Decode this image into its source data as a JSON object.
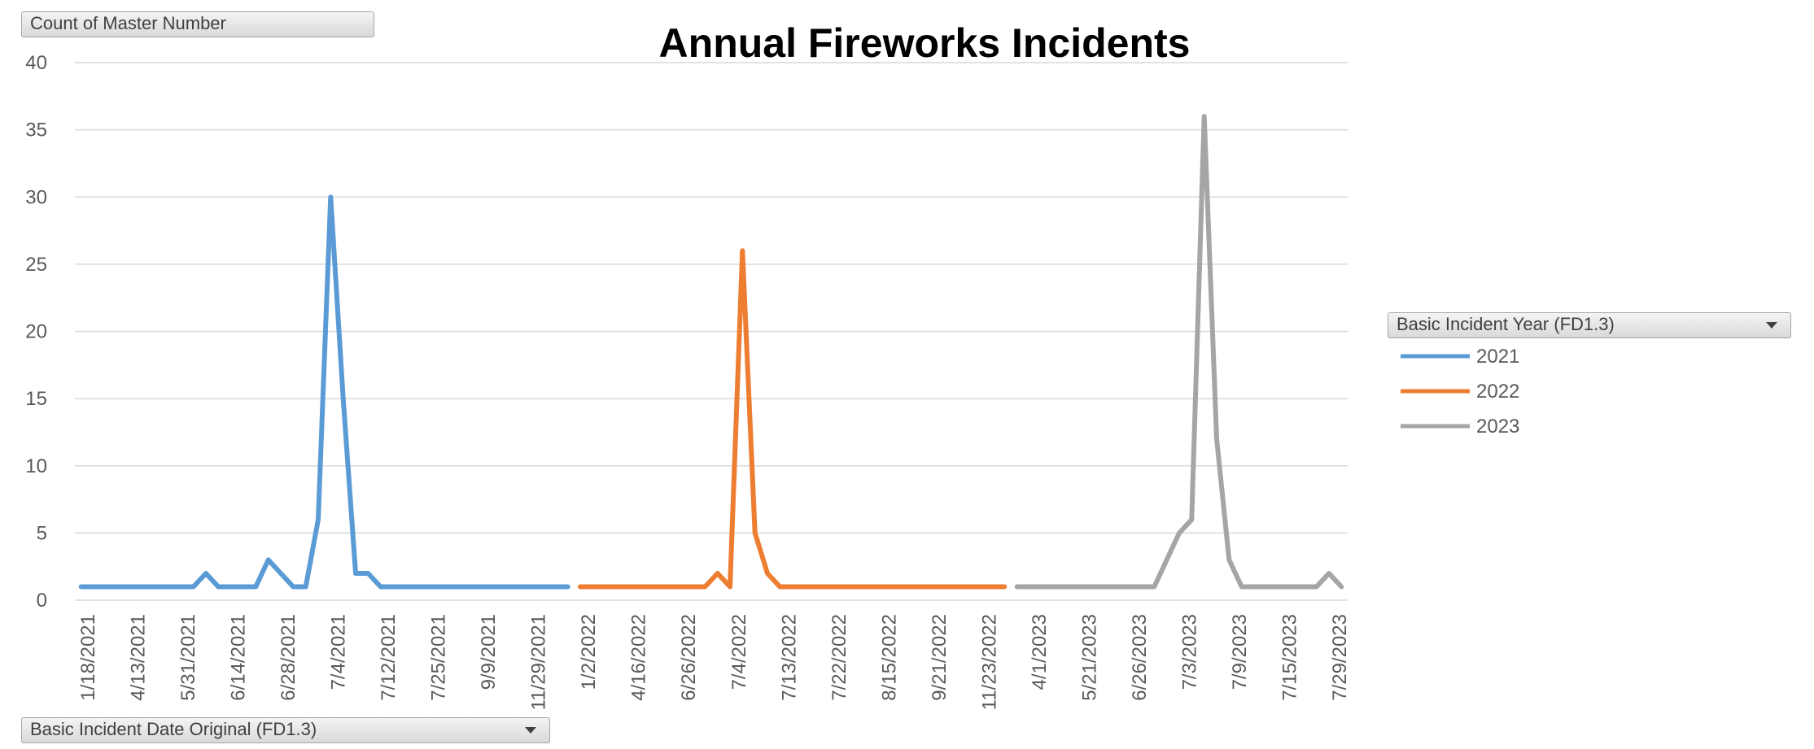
{
  "chart_data": {
    "type": "line",
    "title": "Annual Fireworks Incidents",
    "ylim": [
      0,
      40
    ],
    "yticks": [
      0,
      5,
      10,
      15,
      20,
      25,
      30,
      35,
      40
    ],
    "grid": true,
    "legend_position": "right",
    "x_tick_labels": [
      "1/18/2021",
      "4/13/2021",
      "5/31/2021",
      "6/14/2021",
      "6/28/2021",
      "7/4/2021",
      "7/12/2021",
      "7/25/2021",
      "9/9/2021",
      "11/29/2021",
      "1/2/2022",
      "4/16/2022",
      "6/26/2022",
      "7/4/2022",
      "7/13/2022",
      "7/22/2022",
      "8/15/2022",
      "9/21/2022",
      "11/23/2022",
      "4/1/2023",
      "5/21/2023",
      "6/26/2023",
      "7/3/2023",
      "7/9/2023",
      "7/15/2023",
      "7/29/2023"
    ],
    "series": [
      {
        "name": "2021",
        "color": "#5B9BD5",
        "values": [
          1,
          1,
          1,
          1,
          1,
          1,
          1,
          1,
          1,
          1,
          2,
          1,
          1,
          1,
          1,
          3,
          2,
          1,
          1,
          6,
          30,
          15,
          2,
          2,
          1,
          1,
          1,
          1,
          1,
          1,
          1,
          1,
          1,
          1,
          1,
          1,
          1,
          1,
          1,
          1
        ]
      },
      {
        "name": "2022",
        "color": "#ED7D31",
        "values": [
          1,
          1,
          1,
          1,
          1,
          1,
          1,
          1,
          1,
          1,
          1,
          2,
          1,
          26,
          5,
          2,
          1,
          1,
          1,
          1,
          1,
          1,
          1,
          1,
          1,
          1,
          1,
          1,
          1,
          1,
          1,
          1,
          1,
          1,
          1
        ]
      },
      {
        "name": "2023",
        "color": "#A5A5A5",
        "values": [
          1,
          1,
          1,
          1,
          1,
          1,
          1,
          1,
          1,
          1,
          1,
          1,
          3,
          5,
          6,
          36,
          12,
          3,
          1,
          1,
          1,
          1,
          1,
          1,
          1,
          2,
          1
        ]
      }
    ]
  },
  "pivot": {
    "value_field": "Count of Master Number",
    "axis_field": "Basic Incident Date Original (FD1.3)",
    "legend_field": "Basic Incident Year (FD1.3)"
  }
}
